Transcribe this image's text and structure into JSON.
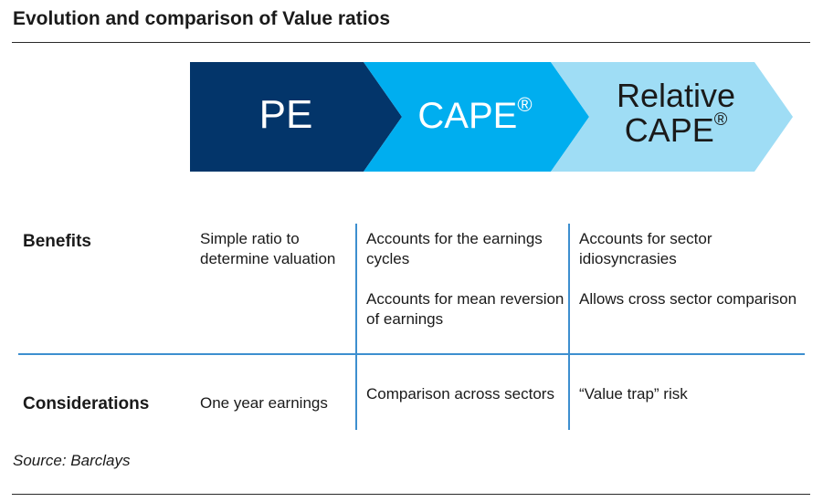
{
  "title": "Evolution and comparison of Value ratios",
  "colors": {
    "pe": "#03356A",
    "cape": "#00AEEF",
    "relative_cape": "#9FDDF5",
    "divider": "#3D8FCF"
  },
  "arrows": [
    {
      "label": "PE",
      "mark": ""
    },
    {
      "label": "CAPE",
      "mark": "®"
    },
    {
      "label_line1": "Relative",
      "label_line2": "CAPE",
      "mark": "®"
    }
  ],
  "rows": {
    "benefits": {
      "heading": "Benefits",
      "pe": [
        "Simple ratio to determine valuation"
      ],
      "cape": [
        "Accounts for the earnings cycles",
        "Accounts for mean reversion of earnings"
      ],
      "relative_cape": [
        "Accounts for sector idiosyncrasies",
        "Allows cross sector comparison"
      ]
    },
    "considerations": {
      "heading": "Considerations",
      "pe": [
        "One year earnings"
      ],
      "cape": [
        "Comparison across sectors"
      ],
      "relative_cape": [
        "“Value trap” risk"
      ]
    }
  },
  "source": "Source: Barclays"
}
